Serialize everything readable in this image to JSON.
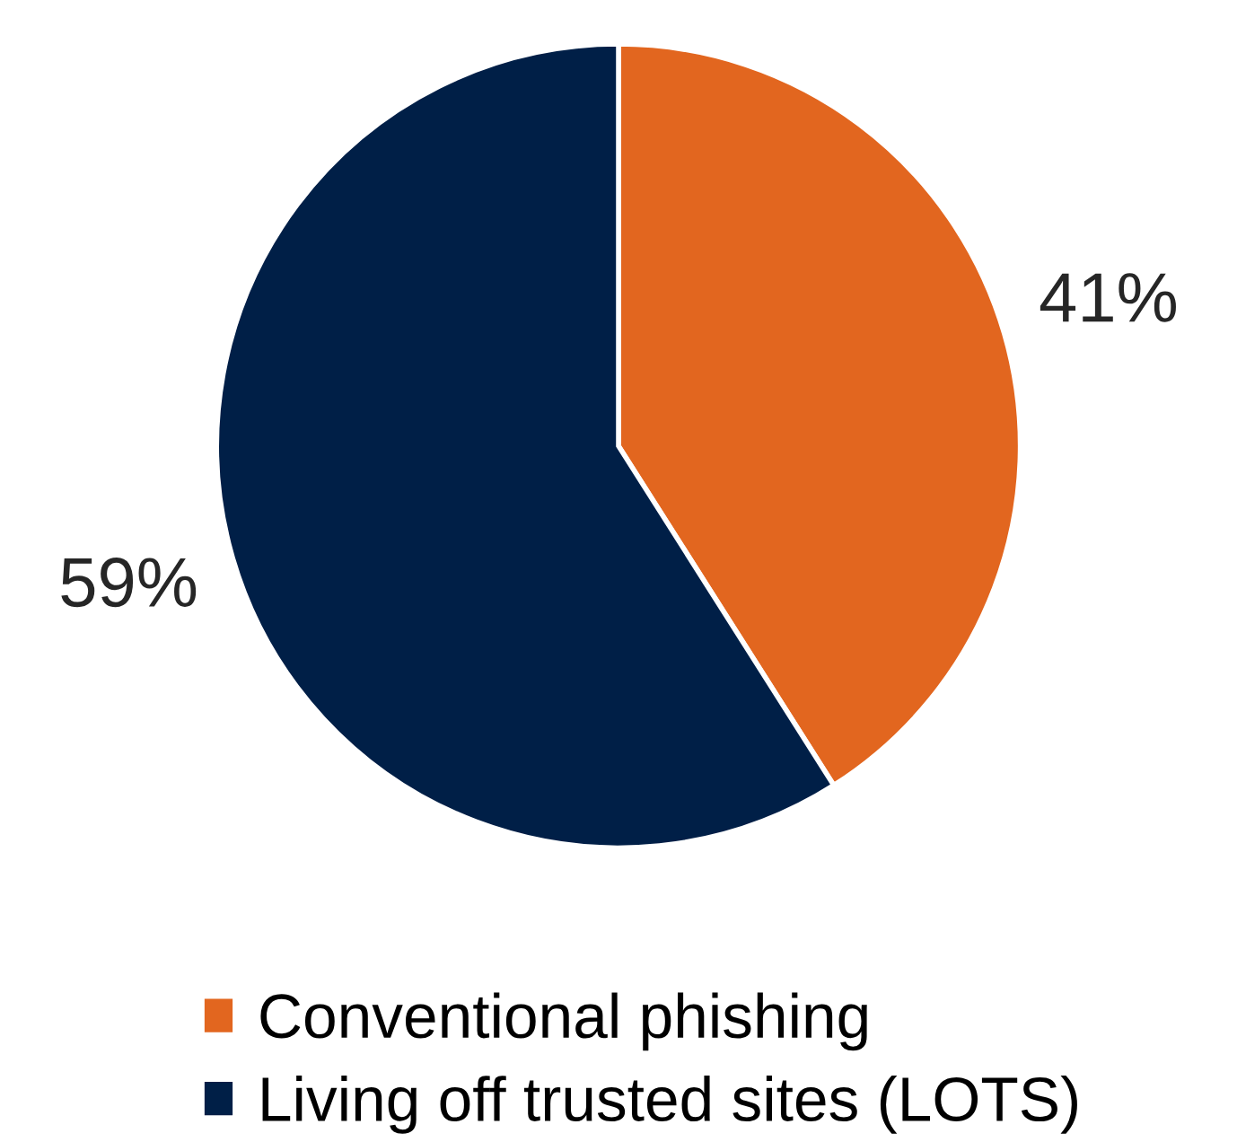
{
  "chart_data": {
    "type": "pie",
    "categories": [
      "Conventional phishing",
      "Living off trusted sites (LOTS)"
    ],
    "values": [
      41,
      59
    ],
    "colors": [
      "#e2661f",
      "#001f47"
    ],
    "value_labels": [
      "41%",
      "59%"
    ],
    "legend": "bottom"
  }
}
